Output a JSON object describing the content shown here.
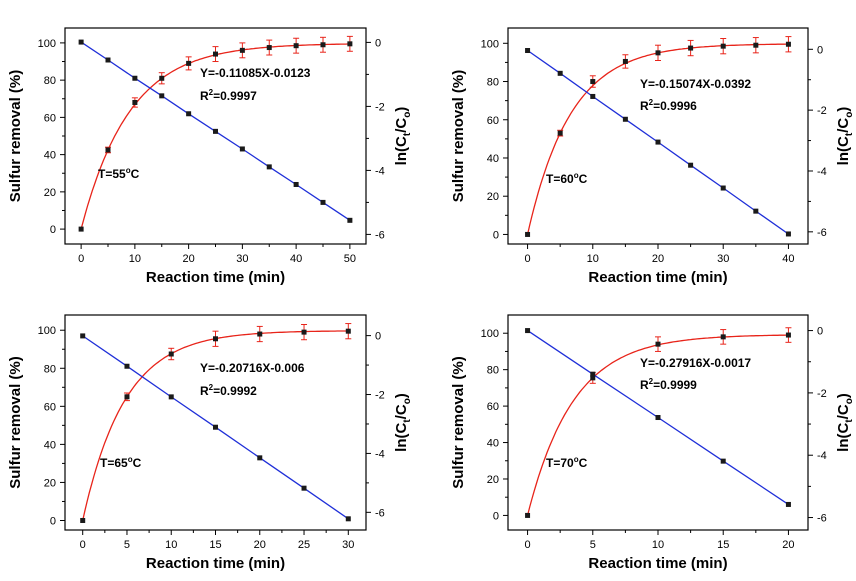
{
  "figure": {
    "colors": {
      "removal": "#e8241a",
      "ln": "#1f2fd8",
      "marker": "#1a1a1a",
      "axis": "#000000"
    }
  },
  "chart_data": [
    {
      "type": "line",
      "xlabel": "Reaction time (min)",
      "ylabel": "Sulfur removal (%)",
      "y2label_base": "ln(C",
      "y2label_sub1": "t",
      "y2label_mid": "/C",
      "y2label_sub2": "o",
      "y2label_end": ")",
      "xlim": [
        -3,
        53
      ],
      "xticks": [
        0,
        10,
        20,
        30,
        40,
        50
      ],
      "ylim": [
        -8,
        108
      ],
      "yticks": [
        0,
        20,
        40,
        60,
        80,
        100
      ],
      "y2lim": [
        -6.3,
        0.45
      ],
      "y2ticks": [
        0,
        -2,
        -4,
        -6
      ],
      "equation": "Y=-0.11085X-0.0123",
      "r2_prefix": "R",
      "r2_sup": "2",
      "r2_value": "=0.9997",
      "temp_prefix": "T=55",
      "temp_sup": "o",
      "temp_unit": "C",
      "series": [
        {
          "axis": "left",
          "color": "#e8241a",
          "x": [
            0,
            5,
            10,
            15,
            20,
            25,
            30,
            35,
            40,
            45,
            50
          ],
          "y": [
            0,
            42.5,
            68,
            81,
            89,
            94,
            96,
            97.5,
            98.5,
            99,
            99.5
          ],
          "err": [
            0,
            1.5,
            2.5,
            3,
            3.5,
            4,
            4,
            4,
            4,
            4,
            4
          ]
        },
        {
          "axis": "right",
          "color": "#1f2fd8",
          "x": [
            0,
            5,
            10,
            15,
            20,
            25,
            30,
            35,
            40,
            45,
            50
          ],
          "y": [
            0.01,
            -0.55,
            -1.12,
            -1.67,
            -2.23,
            -2.78,
            -3.33,
            -3.89,
            -4.44,
            -5.0,
            -5.56
          ]
        }
      ]
    },
    {
      "type": "line",
      "xlabel": "Reaction time (min)",
      "ylabel": "Sulfur removal (%)",
      "y2label_base": "ln(C",
      "y2label_sub1": "t",
      "y2label_mid": "/C",
      "y2label_sub2": "o",
      "y2label_end": ")",
      "xlim": [
        -3,
        43
      ],
      "xticks": [
        0,
        10,
        20,
        30,
        40
      ],
      "ylim": [
        -5,
        108
      ],
      "yticks": [
        0,
        20,
        40,
        60,
        80,
        100
      ],
      "y2lim": [
        -6.4,
        0.7
      ],
      "y2ticks": [
        0,
        -2,
        -4,
        -6
      ],
      "equation": "Y=-0.15074X-0.0392",
      "r2_prefix": "R",
      "r2_sup": "2",
      "r2_value": "=0.9996",
      "temp_prefix": "T=60",
      "temp_sup": "o",
      "temp_unit": "C",
      "series": [
        {
          "axis": "left",
          "color": "#e8241a",
          "x": [
            0,
            5,
            10,
            15,
            20,
            25,
            30,
            35,
            40
          ],
          "y": [
            0,
            53,
            80,
            90.5,
            95,
            97.5,
            98.5,
            99,
            99.5
          ],
          "err": [
            0,
            1.5,
            3,
            3.5,
            4,
            4,
            4,
            4,
            4
          ]
        },
        {
          "axis": "right",
          "color": "#1f2fd8",
          "x": [
            0,
            5,
            10,
            15,
            20,
            25,
            30,
            35,
            40
          ],
          "y": [
            -0.04,
            -0.79,
            -1.55,
            -2.3,
            -3.05,
            -3.81,
            -4.56,
            -5.32,
            -6.07
          ]
        }
      ]
    },
    {
      "type": "line",
      "xlabel": "Reaction time (min)",
      "ylabel": "Sulfur removal (%)",
      "y2label_base": "ln(C",
      "y2label_sub1": "t",
      "y2label_mid": "/C",
      "y2label_sub2": "o",
      "y2label_end": ")",
      "xlim": [
        -2,
        32
      ],
      "xticks": [
        0,
        5,
        10,
        15,
        20,
        25,
        30
      ],
      "ylim": [
        -5,
        108
      ],
      "yticks": [
        0,
        20,
        40,
        60,
        80,
        100
      ],
      "y2lim": [
        -6.6,
        0.7
      ],
      "y2ticks": [
        0,
        -2,
        -4,
        -6
      ],
      "equation": "Y=-0.20716X-0.006",
      "r2_prefix": "R",
      "r2_sup": "2",
      "r2_value": "=0.9992",
      "temp_prefix": "T=65",
      "temp_sup": "o",
      "temp_unit": "C",
      "series": [
        {
          "axis": "left",
          "color": "#e8241a",
          "x": [
            0,
            5,
            10,
            15,
            20,
            25,
            30
          ],
          "y": [
            0,
            65,
            87.5,
            95.5,
            98,
            99,
            99.5
          ],
          "err": [
            0,
            2,
            3,
            4,
            4,
            4,
            4
          ]
        },
        {
          "axis": "right",
          "color": "#1f2fd8",
          "x": [
            0,
            5,
            10,
            15,
            20,
            25,
            30
          ],
          "y": [
            -0.01,
            -1.04,
            -2.08,
            -3.11,
            -4.15,
            -5.18,
            -6.22
          ]
        }
      ]
    },
    {
      "type": "line",
      "xlabel": "Reaction time (min)",
      "ylabel": "Sulfur removal (%)",
      "y2label_base": "ln(C",
      "y2label_sub1": "t",
      "y2label_mid": "/C",
      "y2label_sub2": "o",
      "y2label_end": ")",
      "xlim": [
        -1.5,
        21.5
      ],
      "xticks": [
        0,
        5,
        10,
        15,
        20
      ],
      "ylim": [
        -8,
        110
      ],
      "yticks": [
        0,
        20,
        40,
        60,
        80,
        100
      ],
      "y2lim": [
        -6.4,
        0.5
      ],
      "y2ticks": [
        0,
        -2,
        -4,
        -6
      ],
      "equation": "Y=-0.27916X-0.0017",
      "r2_prefix": "R",
      "r2_sup": "2",
      "r2_value": "=0.9999",
      "temp_prefix": "T=70",
      "temp_sup": "o",
      "temp_unit": "C",
      "series": [
        {
          "axis": "left",
          "color": "#e8241a",
          "x": [
            0,
            5,
            10,
            15,
            20
          ],
          "y": [
            0,
            75.5,
            94,
            98,
            99
          ],
          "err": [
            0,
            3,
            4,
            4,
            4
          ]
        },
        {
          "axis": "right",
          "color": "#1f2fd8",
          "x": [
            0,
            5,
            10,
            15,
            20
          ],
          "y": [
            0.0,
            -1.4,
            -2.79,
            -4.19,
            -5.58
          ]
        }
      ]
    }
  ]
}
